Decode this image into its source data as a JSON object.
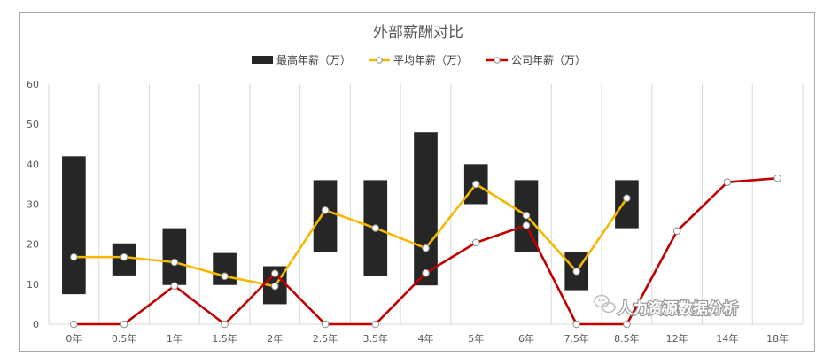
{
  "chart_data": {
    "type": "bar",
    "title": "外部薪酬对比",
    "categories": [
      "0年",
      "0.5年",
      "1年",
      "1.5年",
      "2年",
      "2.5年",
      "3.5年",
      "4年",
      "5年",
      "6年",
      "7.5年",
      "8.5年",
      "12年",
      "14年",
      "18年"
    ],
    "ylim": [
      0,
      60
    ],
    "yticks": [
      0,
      10,
      20,
      30,
      40,
      50,
      60
    ],
    "grid": "vertical",
    "legend_position": "top",
    "series": [
      {
        "name": "最高年薪（万）",
        "kind": "floating-bar",
        "color": "#262626",
        "low": [
          7.5,
          12.2,
          9.8,
          9.8,
          5,
          18,
          12,
          9.7,
          30,
          18,
          8.5,
          24,
          null,
          null,
          null
        ],
        "high": [
          42,
          20.2,
          24,
          17.8,
          14.5,
          36,
          36,
          48,
          40,
          36,
          18,
          36,
          null,
          null,
          null
        ]
      },
      {
        "name": "平均年薪（万）",
        "kind": "line",
        "color": "#f5b800",
        "values": [
          16.8,
          16.8,
          15.5,
          12,
          9.5,
          28.5,
          24,
          19,
          35,
          27.2,
          13.2,
          31.5,
          null,
          null,
          null
        ]
      },
      {
        "name": "公司年薪（万）",
        "kind": "line",
        "color": "#c00000",
        "values": [
          0,
          0,
          9.6,
          0,
          12.7,
          0,
          0,
          12.8,
          20.4,
          24.7,
          0,
          0,
          23.3,
          35.5,
          36.5
        ]
      }
    ]
  },
  "watermark": {
    "text": "人力资源数据分析"
  }
}
